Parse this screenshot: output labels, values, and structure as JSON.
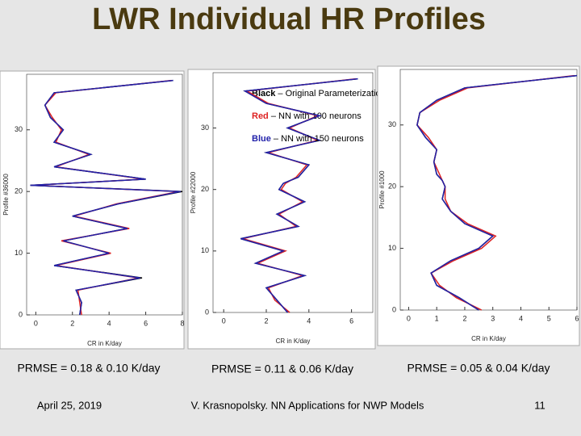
{
  "title": "LWR Individual HR Profiles",
  "captions": [
    "PRMSE = 0.18 & 0.10 K/day",
    "PRMSE = 0.11 & 0.06 K/day",
    "PRMSE = 0.05 & 0.04 K/day"
  ],
  "footer": {
    "date": "April 25, 2019",
    "author": "V. Krasnopolsky.  NN Applications for NWP Models",
    "page": "11"
  },
  "chart_data": [
    {
      "type": "line",
      "xlabel": "CR in K/day",
      "ylabel": "Profile #36000",
      "levels": [
        0,
        2,
        4,
        6,
        8,
        10,
        12,
        14,
        16,
        18,
        20,
        21,
        22,
        24,
        26,
        28,
        30,
        32,
        34,
        36,
        38
      ],
      "series": [
        {
          "name": "Black",
          "color": "#000000",
          "values": [
            2.4,
            2.5,
            2.2,
            5.8,
            1.0,
            4.0,
            1.5,
            5.0,
            2.0,
            4.5,
            8.0,
            -0.3,
            6.0,
            1.0,
            3.0,
            1.0,
            1.5,
            0.8,
            0.5,
            1.0,
            7.5
          ]
        },
        {
          "name": "Red",
          "color": "#dd2222",
          "values": [
            2.5,
            2.4,
            2.3,
            5.6,
            1.1,
            4.1,
            1.4,
            5.1,
            2.1,
            4.4,
            7.8,
            -0.2,
            5.9,
            1.1,
            2.9,
            1.1,
            1.4,
            0.9,
            0.5,
            1.1,
            7.4
          ]
        },
        {
          "name": "Blue",
          "color": "#2222aa",
          "values": [
            2.4,
            2.5,
            2.2,
            5.7,
            1.0,
            4.0,
            1.5,
            5.0,
            2.0,
            4.5,
            7.9,
            -0.3,
            6.0,
            1.0,
            3.0,
            1.0,
            1.5,
            0.8,
            0.5,
            1.0,
            7.5
          ]
        }
      ],
      "xlim": [
        -0.5,
        8
      ],
      "ylim": [
        0,
        39
      ],
      "xticks": [
        0,
        2,
        4,
        6,
        8
      ],
      "yticks": [
        0,
        10,
        20,
        30
      ]
    },
    {
      "type": "line",
      "xlabel": "CR in K/day",
      "ylabel": "Profile #22000",
      "levels": [
        0,
        2,
        4,
        6,
        8,
        10,
        12,
        14,
        16,
        18,
        20,
        21,
        22,
        24,
        26,
        28,
        30,
        32,
        34,
        36,
        38
      ],
      "series": [
        {
          "name": "Black",
          "description": " – Original Parameterization",
          "color": "#000000",
          "values": [
            3.0,
            2.5,
            2.0,
            3.8,
            1.5,
            2.8,
            0.8,
            3.5,
            2.5,
            3.8,
            2.6,
            2.8,
            3.5,
            4.0,
            2.0,
            4.5,
            3.0,
            4.5,
            2.0,
            1.0,
            6.3
          ]
        },
        {
          "name": "Red",
          "description": " – NN with 100 neurons",
          "color": "#dd2222",
          "values": [
            3.1,
            2.4,
            2.1,
            3.7,
            1.6,
            2.9,
            0.9,
            3.4,
            2.6,
            3.7,
            2.7,
            2.9,
            3.4,
            3.9,
            2.1,
            4.4,
            3.1,
            4.4,
            2.1,
            1.1,
            6.2
          ]
        },
        {
          "name": "Blue",
          "description": " – NN with 150 neurons",
          "color": "#2222aa",
          "values": [
            3.0,
            2.5,
            2.0,
            3.8,
            1.5,
            2.8,
            0.8,
            3.5,
            2.5,
            3.8,
            2.6,
            2.8,
            3.5,
            4.0,
            2.0,
            4.5,
            3.0,
            4.5,
            2.0,
            1.0,
            6.3
          ]
        }
      ],
      "xlim": [
        -0.5,
        7
      ],
      "ylim": [
        0,
        39
      ],
      "xticks": [
        0,
        2,
        4,
        6
      ],
      "yticks": [
        0,
        10,
        20,
        30
      ]
    },
    {
      "type": "line",
      "xlabel": "CR in K/day",
      "ylabel": "Profile #1000",
      "levels": [
        0,
        2,
        4,
        6,
        8,
        10,
        12,
        14,
        16,
        18,
        20,
        21,
        22,
        24,
        26,
        28,
        30,
        32,
        34,
        36,
        38
      ],
      "series": [
        {
          "name": "Black",
          "color": "#000000",
          "values": [
            2.5,
            1.8,
            1.0,
            0.8,
            1.5,
            2.5,
            3.0,
            2.0,
            1.5,
            1.2,
            1.3,
            1.2,
            1.0,
            0.9,
            1.0,
            0.6,
            0.3,
            0.4,
            1.0,
            2.0,
            6.0
          ]
        },
        {
          "name": "Red",
          "color": "#dd2222",
          "values": [
            2.6,
            1.7,
            1.1,
            0.8,
            1.6,
            2.6,
            3.1,
            2.1,
            1.5,
            1.3,
            1.3,
            1.2,
            1.1,
            0.9,
            1.0,
            0.7,
            0.3,
            0.4,
            1.1,
            2.1,
            5.9
          ]
        },
        {
          "name": "Blue",
          "color": "#2222aa",
          "values": [
            2.5,
            1.8,
            1.0,
            0.8,
            1.5,
            2.5,
            3.0,
            2.0,
            1.5,
            1.2,
            1.3,
            1.2,
            1.0,
            0.9,
            1.0,
            0.6,
            0.3,
            0.4,
            1.0,
            2.0,
            6.0
          ]
        }
      ],
      "xlim": [
        -0.3,
        6
      ],
      "ylim": [
        0,
        39
      ],
      "xticks": [
        0,
        1,
        2,
        3,
        4,
        5,
        6
      ],
      "yticks": [
        0,
        10,
        20,
        30
      ]
    }
  ]
}
